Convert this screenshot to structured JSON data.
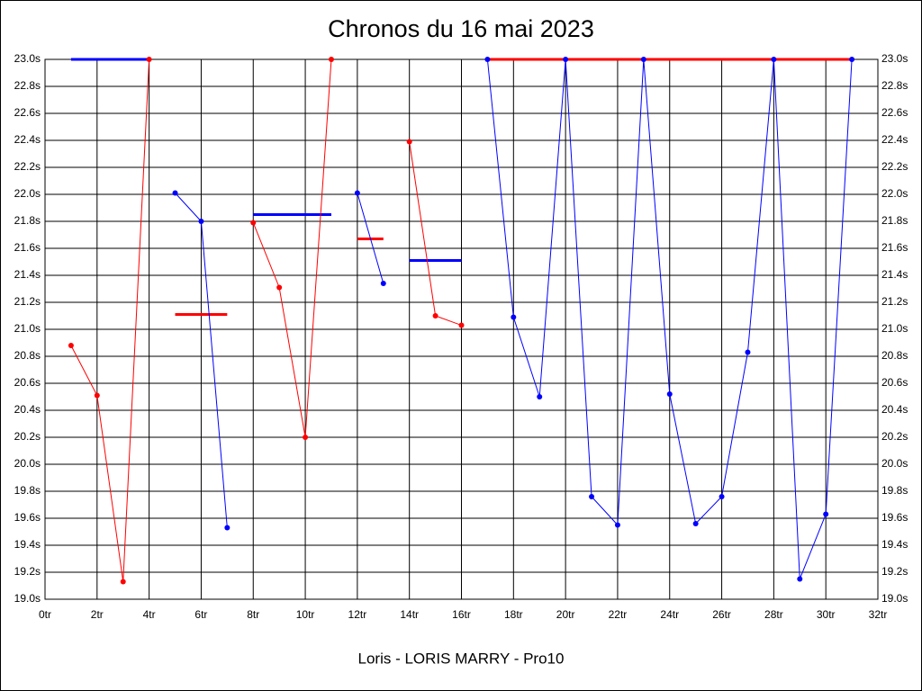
{
  "chart_data": {
    "type": "line",
    "title": "Chronos du 16 mai 2023",
    "x_label": "Loris - LORIS MARRY - Pro10",
    "x": [
      1,
      2,
      3,
      4,
      5,
      6,
      7,
      8,
      9,
      10,
      11,
      12,
      13,
      14,
      15,
      16,
      17,
      18,
      19,
      20,
      21,
      22,
      23,
      24,
      25,
      26,
      27,
      28,
      29,
      30,
      31
    ],
    "series": [
      {
        "color": "#0000ff",
        "line_width": 3,
        "markers": false,
        "values": [
          23.0,
          23.0,
          23.0,
          23.0,
          null,
          null,
          null,
          21.85,
          21.85,
          21.85,
          21.85,
          null,
          null,
          21.51,
          21.51,
          21.51,
          null,
          null,
          null,
          null,
          null,
          null,
          null,
          null,
          null,
          null,
          null,
          null,
          null,
          null,
          null
        ]
      },
      {
        "color": "#ff0000",
        "line_width": 3,
        "markers": false,
        "values": [
          null,
          null,
          null,
          null,
          21.11,
          21.11,
          21.11,
          null,
          null,
          null,
          null,
          21.67,
          21.67,
          null,
          null,
          null,
          23.0,
          23.0,
          23.0,
          23.0,
          23.0,
          23.0,
          23.0,
          23.0,
          23.0,
          23.0,
          23.0,
          23.0,
          23.0,
          23.0,
          23.0
        ]
      },
      {
        "color": "#ff0000",
        "line_width": 1,
        "markers": true,
        "values": [
          20.88,
          20.51,
          19.13,
          23.0,
          null,
          null,
          null,
          21.79,
          21.31,
          20.2,
          23.0,
          null,
          null,
          22.39,
          21.1,
          21.03,
          null,
          null,
          null,
          null,
          null,
          null,
          null,
          null,
          null,
          null,
          null,
          null,
          null,
          null,
          null
        ]
      },
      {
        "color": "#0000ff",
        "line_width": 1,
        "markers": true,
        "values": [
          null,
          null,
          null,
          null,
          22.01,
          21.8,
          19.53,
          null,
          null,
          null,
          null,
          22.01,
          21.34,
          null,
          null,
          null,
          23.0,
          21.09,
          20.5,
          23.0,
          19.76,
          19.55,
          23.0,
          20.52,
          19.56,
          19.76,
          20.83,
          23.0,
          19.15,
          19.63,
          23.0
        ]
      }
    ],
    "xlim": [
      0,
      32
    ],
    "xticks": [
      {
        "value": 0,
        "label": "0tr"
      },
      {
        "value": 2,
        "label": "2tr"
      },
      {
        "value": 4,
        "label": "4tr"
      },
      {
        "value": 6,
        "label": "6tr"
      },
      {
        "value": 8,
        "label": "8tr"
      },
      {
        "value": 10,
        "label": "10tr"
      },
      {
        "value": 12,
        "label": "12tr"
      },
      {
        "value": 14,
        "label": "14tr"
      },
      {
        "value": 16,
        "label": "16tr"
      },
      {
        "value": 18,
        "label": "18tr"
      },
      {
        "value": 20,
        "label": "20tr"
      },
      {
        "value": 22,
        "label": "22tr"
      },
      {
        "value": 24,
        "label": "24tr"
      },
      {
        "value": 26,
        "label": "26tr"
      },
      {
        "value": 28,
        "label": "28tr"
      },
      {
        "value": 30,
        "label": "30tr"
      },
      {
        "value": 32,
        "label": "32tr"
      }
    ],
    "ylim": [
      19.0,
      23.0
    ],
    "yticks": [
      {
        "value": 19.0,
        "label": "19.0s"
      },
      {
        "value": 19.2,
        "label": "19.2s"
      },
      {
        "value": 19.4,
        "label": "19.4s"
      },
      {
        "value": 19.6,
        "label": "19.6s"
      },
      {
        "value": 19.8,
        "label": "19.8s"
      },
      {
        "value": 20.0,
        "label": "20.0s"
      },
      {
        "value": 20.2,
        "label": "20.2s"
      },
      {
        "value": 20.4,
        "label": "20.4s"
      },
      {
        "value": 20.6,
        "label": "20.6s"
      },
      {
        "value": 20.8,
        "label": "20.8s"
      },
      {
        "value": 21.0,
        "label": "21.0s"
      },
      {
        "value": 21.2,
        "label": "21.2s"
      },
      {
        "value": 21.4,
        "label": "21.4s"
      },
      {
        "value": 21.6,
        "label": "21.6s"
      },
      {
        "value": 21.8,
        "label": "21.8s"
      },
      {
        "value": 22.0,
        "label": "22.0s"
      },
      {
        "value": 22.2,
        "label": "22.2s"
      },
      {
        "value": 22.4,
        "label": "22.4s"
      },
      {
        "value": 22.6,
        "label": "22.6s"
      },
      {
        "value": 22.8,
        "label": "22.8s"
      },
      {
        "value": 23.0,
        "label": "23.0s"
      }
    ],
    "grid": true
  }
}
